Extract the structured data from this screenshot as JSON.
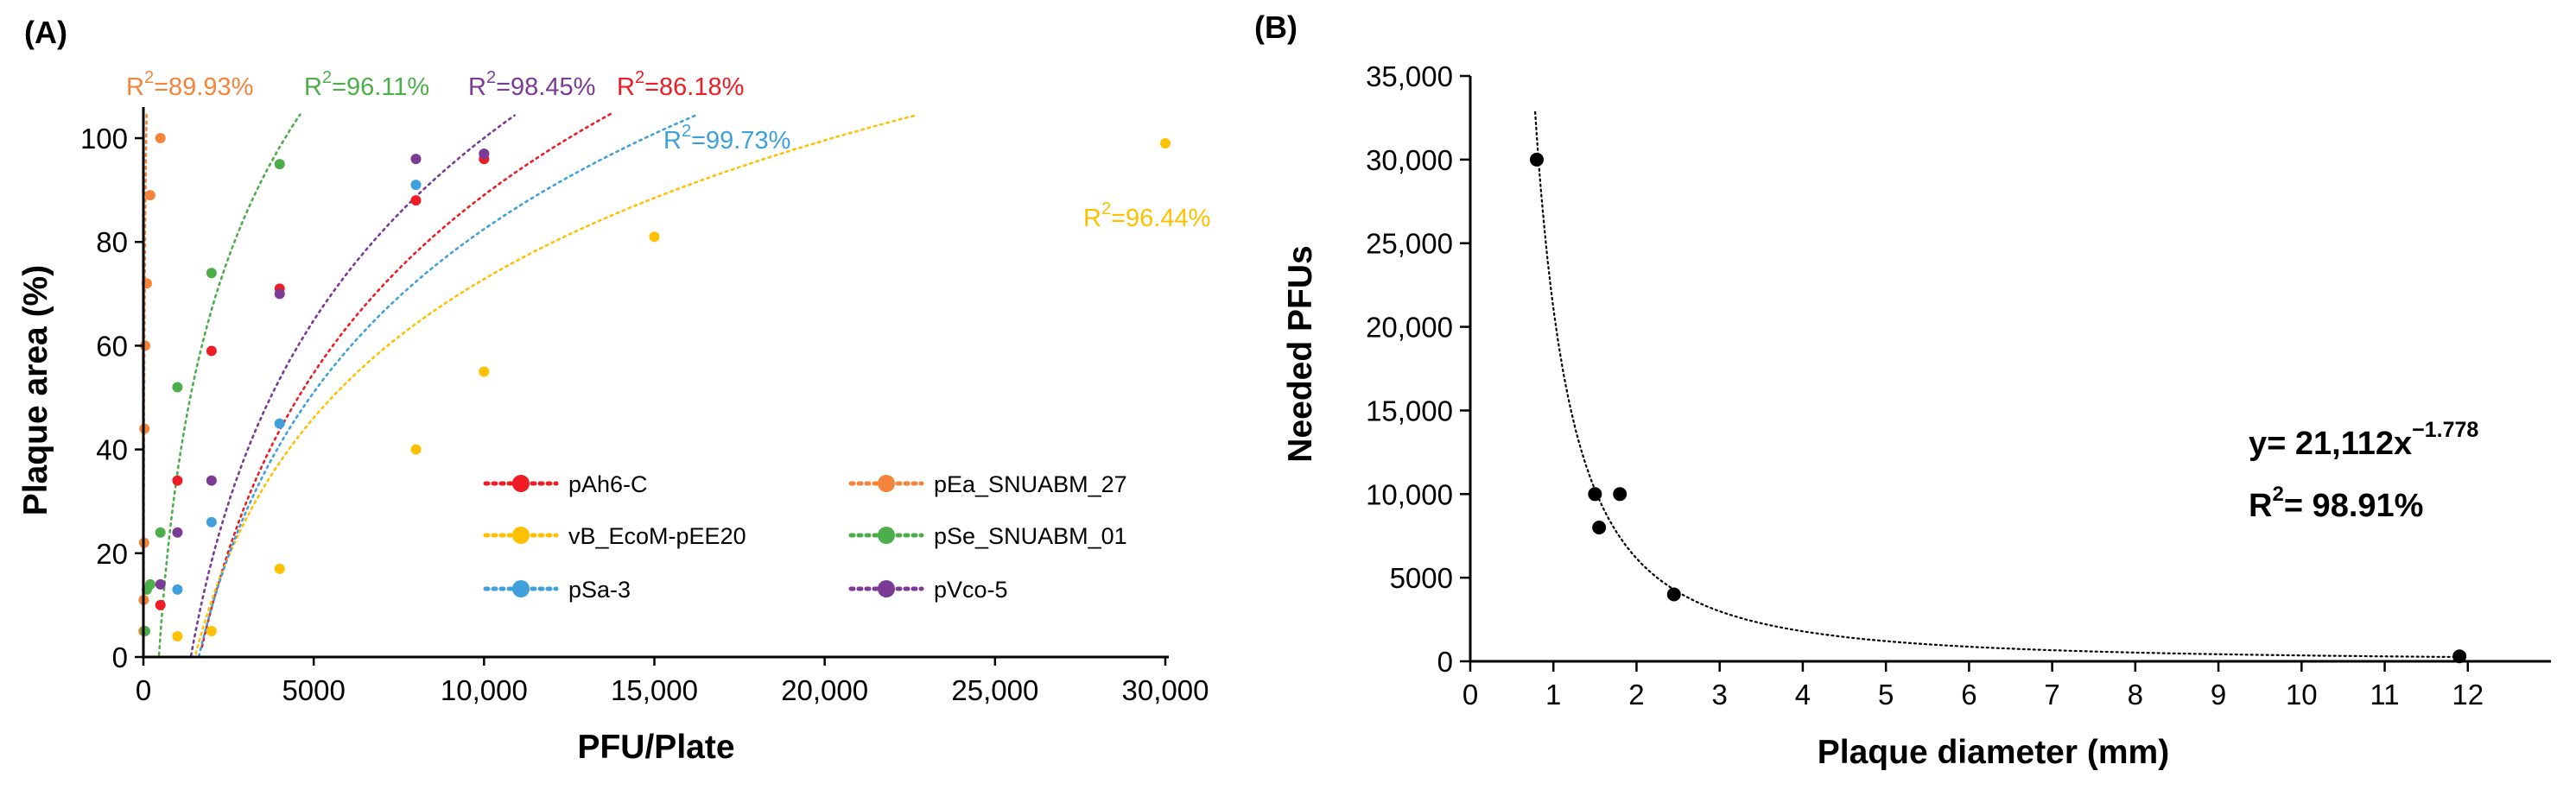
{
  "chart_data": [
    {
      "panel_label": "(A)",
      "type": "scatter",
      "xlabel": "PFU/Plate",
      "ylabel": "Plaque area (%)",
      "xlim": [
        0,
        30000
      ],
      "ylim": [
        0,
        105
      ],
      "x_ticks": [
        0,
        5000,
        10000,
        15000,
        20000,
        25000,
        30000
      ],
      "x_tick_labels": [
        "0",
        "5000",
        "10,000",
        "15,000",
        "20,000",
        "25,000",
        "30,000"
      ],
      "y_ticks": [
        0,
        20,
        40,
        60,
        80,
        100
      ],
      "y_tick_labels": [
        "0",
        "20",
        "40",
        "60",
        "80",
        "100"
      ],
      "legend_position": "lower-right",
      "series": [
        {
          "name": "pAh6-C",
          "color": "#ee1c24",
          "r2_label": "R",
          "r2_sup": "2",
          "r2_value": "=86.18%",
          "fit": {
            "a": -366.6,
            "b": 49.47,
            "x_from": 1720,
            "x_to": 13800
          },
          "points": [
            [
              500,
              10
            ],
            [
              1000,
              34
            ],
            [
              2000,
              59
            ],
            [
              4000,
              71
            ],
            [
              8000,
              88
            ],
            [
              10000,
              96
            ]
          ]
        },
        {
          "name": "vB_EcoM-pEE20",
          "color": "#ffc000",
          "r2_label": "R",
          "r2_sup": "2",
          "r2_value": "=96.44%",
          "fit": {
            "a": -282.4,
            "b": 38.57,
            "x_from": 1510,
            "x_to": 30000
          },
          "points": [
            [
              1000,
              4
            ],
            [
              2000,
              5
            ],
            [
              4000,
              17
            ],
            [
              8000,
              40
            ],
            [
              10000,
              55
            ],
            [
              15000,
              81
            ],
            [
              30000,
              99
            ]
          ]
        },
        {
          "name": "pSa-3",
          "color": "#3fa0dc",
          "r2_label": "R",
          "r2_sup": "2",
          "r2_value": "=99.73%",
          "fit": {
            "a": -335.5,
            "b": 45.38,
            "x_from": 1630,
            "x_to": 16500
          },
          "points": [
            [
              1000,
              13
            ],
            [
              2000,
              26
            ],
            [
              4000,
              45
            ],
            [
              8000,
              91
            ],
            [
              10000,
              97
            ]
          ]
        },
        {
          "name": "pEa_SNUABM_27",
          "color": "#f4843a",
          "r2_label": "R",
          "r2_sup": "2",
          "r2_value": "=89.93%",
          "fit": {
            "a": -67.4,
            "b": 37.89,
            "x_from": 6,
            "x_to": 620
          },
          "points": [
            [
              5,
              5
            ],
            [
              10,
              11
            ],
            [
              20,
              22
            ],
            [
              30,
              44
            ],
            [
              50,
              60
            ],
            [
              100,
              72
            ],
            [
              200,
              89
            ],
            [
              500,
              100
            ]
          ]
        },
        {
          "name": "pSe_SNUABM_01",
          "color": "#4dad4a",
          "r2_label": "R",
          "r2_sup": "2",
          "r2_value": "=96.11%",
          "fit": {
            "a": -276.8,
            "b": 45.22,
            "x_from": 460,
            "x_to": 6900
          },
          "points": [
            [
              50,
              5
            ],
            [
              100,
              13
            ],
            [
              200,
              14
            ],
            [
              500,
              24
            ],
            [
              1000,
              52
            ],
            [
              2000,
              74
            ],
            [
              4000,
              95
            ]
          ]
        },
        {
          "name": "pVco-5",
          "color": "#7a3a96",
          "r2_label": "R",
          "r2_sup": "2",
          "r2_value": "=98.45%",
          "fit": {
            "a": -367.2,
            "b": 50.73,
            "x_from": 1400,
            "x_to": 11800
          },
          "points": [
            [
              500,
              14
            ],
            [
              1000,
              24
            ],
            [
              2000,
              34
            ],
            [
              4000,
              70
            ],
            [
              8000,
              96
            ],
            [
              10000,
              97
            ]
          ]
        }
      ]
    },
    {
      "panel_label": "(B)",
      "type": "scatter",
      "xlabel": "Plaque diameter (mm)",
      "ylabel": "Needed PFUs",
      "xlim": [
        0,
        13
      ],
      "ylim": [
        0,
        35000
      ],
      "x_ticks": [
        0,
        1,
        2,
        3,
        4,
        5,
        6,
        7,
        8,
        9,
        10,
        11,
        12
      ],
      "x_tick_labels": [
        "0",
        "1",
        "2",
        "3",
        "4",
        "5",
        "6",
        "7",
        "8",
        "9",
        "10",
        "11",
        "12"
      ],
      "y_ticks": [
        0,
        5000,
        10000,
        15000,
        20000,
        25000,
        30000,
        35000
      ],
      "y_tick_labels": [
        "0",
        "5000",
        "10,000",
        "15,000",
        "20,000",
        "25,000",
        "30,000",
        "35,000"
      ],
      "points": [
        [
          0.8,
          30000
        ],
        [
          1.5,
          10000
        ],
        [
          1.55,
          8000
        ],
        [
          1.8,
          10000
        ],
        [
          2.45,
          4000
        ],
        [
          11.9,
          300
        ]
      ],
      "fit": {
        "coef": 21112,
        "exp": -1.778,
        "x_from": 0.78,
        "x_to": 12
      },
      "equation": {
        "prefix": "y= 21,112x",
        "exponent": "−1.778",
        "r2_label": "R",
        "r2_sup": "2",
        "r2_value": "= 98.91%"
      }
    }
  ]
}
